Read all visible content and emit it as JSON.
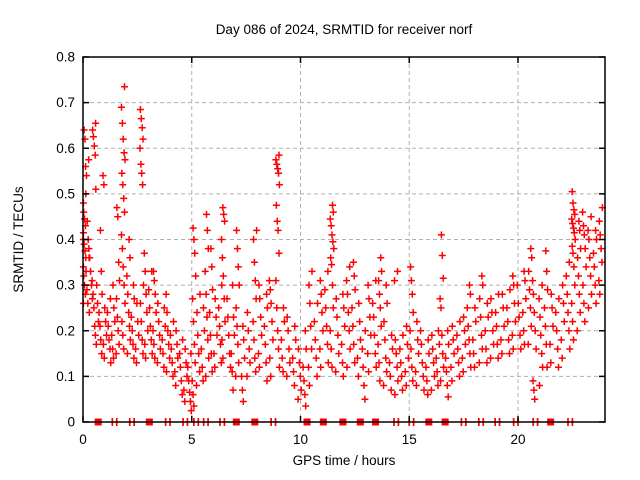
{
  "title": "Day 086 of 2024, SRMTID for receiver norf",
  "axes": {
    "xlabel": "GPS time / hours",
    "ylabel": "SRMTID / TECUs",
    "xticks": [
      {
        "v": 0,
        "label": "0"
      },
      {
        "v": 5,
        "label": "5"
      },
      {
        "v": 10,
        "label": "10"
      },
      {
        "v": 15,
        "label": "15"
      },
      {
        "v": 20,
        "label": "20"
      }
    ],
    "yticks": [
      {
        "v": 0,
        "label": "0"
      },
      {
        "v": 0.1,
        "label": "0.1"
      },
      {
        "v": 0.2,
        "label": "0.2"
      },
      {
        "v": 0.3,
        "label": "0.3"
      },
      {
        "v": 0.4,
        "label": "0.4"
      },
      {
        "v": 0.5,
        "label": "0.5"
      },
      {
        "v": 0.6,
        "label": "0.6"
      },
      {
        "v": 0.7,
        "label": "0.7"
      },
      {
        "v": 0.8,
        "label": "0.8"
      }
    ]
  },
  "colors": {
    "marker": "#ff0000",
    "grid": "#b0b0b0",
    "border": "#000000",
    "background": "#ffffff"
  },
  "chart_data": {
    "type": "scatter",
    "title": "Day 086 of 2024, SRMTID for receiver norf",
    "xlabel": "GPS time / hours",
    "ylabel": "SRMTID / TECUs",
    "xlim": [
      0,
      24
    ],
    "ylim": [
      0,
      0.8
    ],
    "grid": "dashed, at x=5,10,15,20 and y=0.1..0.7",
    "legend": "none",
    "marker": "plus",
    "marker_color": "#ff0000",
    "columns_note": "each entry = [gps_hour, [SRMTID values observed near that epoch]]",
    "columns": [
      [
        0.05,
        [
          0.26,
          0.28,
          0.3,
          0.32,
          0.34,
          0.36,
          0.375,
          0.39,
          0.4,
          0.415,
          0.43,
          0.445,
          0.46,
          0.48,
          0.5,
          0.62,
          0.64
        ]
      ],
      [
        0.2,
        [
          0.26,
          0.29,
          0.33,
          0.36,
          0.4,
          0.44,
          0.54,
          0.56,
          0.575
        ]
      ],
      [
        0.35,
        [
          0.24,
          0.27,
          0.3,
          0.33,
          0.36,
          0.38
        ]
      ],
      [
        0.5,
        [
          0.21,
          0.25,
          0.28,
          0.31,
          0.585,
          0.605,
          0.625,
          0.64,
          0.655
        ]
      ],
      [
        0.65,
        [
          0.17,
          0.19,
          0.22,
          0.26,
          0.3,
          0.51
        ]
      ],
      [
        0.8,
        [
          0.15,
          0.18,
          0.21,
          0.24,
          0.28,
          0.33,
          0.42
        ]
      ],
      [
        1.0,
        [
          0.14,
          0.17,
          0.19,
          0.22,
          0.25,
          0.52,
          0.54
        ]
      ],
      [
        1.2,
        [
          0.13,
          0.16,
          0.18,
          0.21,
          0.24,
          0.27
        ]
      ],
      [
        1.4,
        [
          0.14,
          0.16,
          0.19,
          0.22,
          0.25,
          0.3
        ]
      ],
      [
        1.6,
        [
          0.15,
          0.17,
          0.2,
          0.23,
          0.27,
          0.31,
          0.35,
          0.45,
          0.47
        ]
      ],
      [
        1.85,
        [
          0.16,
          0.19,
          0.22,
          0.26,
          0.3,
          0.34,
          0.38,
          0.41,
          0.46,
          0.49,
          0.52,
          0.545,
          0.575,
          0.59,
          0.62,
          0.655,
          0.69,
          0.735
        ]
      ],
      [
        2.1,
        [
          0.15,
          0.18,
          0.21,
          0.24,
          0.28,
          0.32,
          0.36,
          0.4
        ]
      ],
      [
        2.3,
        [
          0.14,
          0.17,
          0.2,
          0.23,
          0.27,
          0.3
        ]
      ],
      [
        2.5,
        [
          0.13,
          0.16,
          0.19,
          0.22,
          0.26
        ]
      ],
      [
        2.7,
        [
          0.15,
          0.18,
          0.22,
          0.26,
          0.3,
          0.52,
          0.545,
          0.565,
          0.6,
          0.62,
          0.645,
          0.665,
          0.685
        ]
      ],
      [
        2.9,
        [
          0.14,
          0.17,
          0.2,
          0.24,
          0.28,
          0.33,
          0.37
        ]
      ],
      [
        3.1,
        [
          0.15,
          0.18,
          0.21,
          0.25,
          0.29,
          0.33
        ]
      ],
      [
        3.3,
        [
          0.14,
          0.17,
          0.2,
          0.24,
          0.28,
          0.31,
          0.33
        ]
      ],
      [
        3.5,
        [
          0.13,
          0.16,
          0.19,
          0.22,
          0.26
        ]
      ],
      [
        3.7,
        [
          0.12,
          0.15,
          0.18,
          0.21,
          0.25
        ]
      ],
      [
        3.9,
        [
          0.11,
          0.14,
          0.17,
          0.2,
          0.24,
          0.28
        ]
      ],
      [
        4.1,
        [
          0.1,
          0.13,
          0.16,
          0.19,
          0.22
        ]
      ],
      [
        4.3,
        [
          0.08,
          0.11,
          0.14,
          0.17,
          0.2
        ]
      ],
      [
        4.5,
        [
          0.06,
          0.09,
          0.12,
          0.15,
          0.18
        ]
      ],
      [
        4.7,
        [
          0.045,
          0.07,
          0.1,
          0.13,
          0.16
        ]
      ],
      [
        4.9,
        [
          0.025,
          0.045,
          0.065,
          0.09,
          0.12,
          0.15
        ]
      ],
      [
        5.1,
        [
          0.035,
          0.06,
          0.09,
          0.13,
          0.17,
          0.22,
          0.27,
          0.32,
          0.37,
          0.4,
          0.425
        ]
      ],
      [
        5.3,
        [
          0.08,
          0.11,
          0.15,
          0.19,
          0.24,
          0.28
        ]
      ],
      [
        5.5,
        [
          0.09,
          0.12,
          0.16,
          0.2,
          0.25
        ]
      ],
      [
        5.7,
        [
          0.1,
          0.14,
          0.18,
          0.23,
          0.28,
          0.33,
          0.38,
          0.42,
          0.455
        ]
      ],
      [
        5.9,
        [
          0.11,
          0.15,
          0.19,
          0.24,
          0.29,
          0.34,
          0.38
        ]
      ],
      [
        6.1,
        [
          0.12,
          0.15,
          0.19,
          0.23,
          0.27
        ]
      ],
      [
        6.3,
        [
          0.13,
          0.17,
          0.21,
          0.25,
          0.3
        ]
      ],
      [
        6.45,
        [
          0.14,
          0.18,
          0.22,
          0.27,
          0.32,
          0.36,
          0.4,
          0.44,
          0.455,
          0.47
        ]
      ],
      [
        6.7,
        [
          0.12,
          0.15,
          0.19,
          0.23,
          0.27
        ]
      ],
      [
        6.9,
        [
          0.07,
          0.11,
          0.15,
          0.19,
          0.23,
          0.3
        ]
      ],
      [
        7.1,
        [
          0.1,
          0.13,
          0.17,
          0.21,
          0.25,
          0.3,
          0.34,
          0.38,
          0.42
        ]
      ],
      [
        7.35,
        [
          0.045,
          0.07,
          0.1,
          0.14,
          0.18,
          0.21
        ]
      ],
      [
        7.6,
        [
          0.1,
          0.13,
          0.16,
          0.2,
          0.24
        ]
      ],
      [
        7.9,
        [
          0.11,
          0.14,
          0.18,
          0.22,
          0.27,
          0.31,
          0.35,
          0.4,
          0.42
        ]
      ],
      [
        8.15,
        [
          0.12,
          0.15,
          0.19,
          0.23,
          0.27,
          0.3
        ]
      ],
      [
        8.4,
        [
          0.09,
          0.13,
          0.17,
          0.21,
          0.25,
          0.28
        ]
      ],
      [
        8.65,
        [
          0.1,
          0.14,
          0.18,
          0.22,
          0.26,
          0.29,
          0.31
        ]
      ],
      [
        8.95,
        [
          0.12,
          0.16,
          0.2,
          0.25,
          0.31,
          0.37,
          0.42,
          0.44,
          0.475,
          0.52,
          0.545,
          0.555,
          0.565,
          0.575,
          0.585
        ]
      ],
      [
        9.2,
        [
          0.11,
          0.14,
          0.18,
          0.22,
          0.25
        ]
      ],
      [
        9.45,
        [
          0.1,
          0.13,
          0.16,
          0.2,
          0.23
        ]
      ],
      [
        9.7,
        [
          0.08,
          0.11,
          0.14,
          0.18,
          0.21
        ]
      ],
      [
        9.95,
        [
          0.05,
          0.07,
          0.1,
          0.13,
          0.16
        ]
      ],
      [
        10.2,
        [
          0.035,
          0.06,
          0.09,
          0.12,
          0.16,
          0.2
        ]
      ],
      [
        10.45,
        [
          0.08,
          0.12,
          0.16,
          0.21,
          0.26,
          0.3,
          0.33
        ]
      ],
      [
        10.7,
        [
          0.1,
          0.14,
          0.18,
          0.22,
          0.26
        ]
      ],
      [
        10.95,
        [
          0.12,
          0.16,
          0.2,
          0.24,
          0.28,
          0.31
        ]
      ],
      [
        11.2,
        [
          0.13,
          0.17,
          0.21,
          0.25,
          0.29,
          0.33
        ]
      ],
      [
        11.45,
        [
          0.12,
          0.16,
          0.2,
          0.25,
          0.3,
          0.345,
          0.36,
          0.38,
          0.395,
          0.41,
          0.43,
          0.445,
          0.46,
          0.475
        ]
      ],
      [
        11.7,
        [
          0.11,
          0.15,
          0.19,
          0.23,
          0.27
        ]
      ],
      [
        11.95,
        [
          0.1,
          0.13,
          0.17,
          0.21,
          0.25,
          0.28
        ]
      ],
      [
        12.2,
        [
          0.12,
          0.16,
          0.2,
          0.24,
          0.28,
          0.31,
          0.34
        ]
      ],
      [
        12.45,
        [
          0.13,
          0.17,
          0.21,
          0.25,
          0.29,
          0.32,
          0.35
        ]
      ],
      [
        12.7,
        [
          0.1,
          0.14,
          0.18,
          0.22,
          0.26
        ]
      ],
      [
        12.9,
        [
          0.05,
          0.08,
          0.12,
          0.16,
          0.2
        ]
      ],
      [
        13.15,
        [
          0.11,
          0.15,
          0.19,
          0.23,
          0.27,
          0.3
        ]
      ],
      [
        13.4,
        [
          0.12,
          0.15,
          0.19,
          0.23,
          0.26,
          0.31
        ]
      ],
      [
        13.65,
        [
          0.09,
          0.13,
          0.17,
          0.21,
          0.25,
          0.28,
          0.31,
          0.33,
          0.36
        ]
      ],
      [
        13.9,
        [
          0.08,
          0.11,
          0.14,
          0.18,
          0.22,
          0.26,
          0.3
        ]
      ],
      [
        14.15,
        [
          0.07,
          0.1,
          0.13,
          0.16,
          0.19
        ]
      ],
      [
        14.4,
        [
          0.06,
          0.09,
          0.12,
          0.15,
          0.18,
          0.31,
          0.33
        ]
      ],
      [
        14.65,
        [
          0.07,
          0.1,
          0.13,
          0.16,
          0.19
        ]
      ],
      [
        14.9,
        [
          0.08,
          0.11,
          0.14,
          0.17,
          0.21
        ]
      ],
      [
        15.1,
        [
          0.09,
          0.12,
          0.16,
          0.2,
          0.24,
          0.28,
          0.31,
          0.34
        ]
      ],
      [
        15.35,
        [
          0.08,
          0.11,
          0.15,
          0.18,
          0.22
        ]
      ],
      [
        15.6,
        [
          0.07,
          0.1,
          0.13,
          0.17,
          0.2
        ]
      ],
      [
        15.85,
        [
          0.06,
          0.09,
          0.12,
          0.15,
          0.18
        ]
      ],
      [
        16.1,
        [
          0.07,
          0.1,
          0.13,
          0.16,
          0.19
        ]
      ],
      [
        16.3,
        [
          0.08,
          0.11,
          0.14,
          0.17,
          0.2
        ]
      ],
      [
        16.5,
        [
          0.09,
          0.12,
          0.15,
          0.19,
          0.25,
          0.27,
          0.315,
          0.365,
          0.41
        ]
      ],
      [
        16.75,
        [
          0.055,
          0.08,
          0.11,
          0.14,
          0.17,
          0.2
        ]
      ],
      [
        17.0,
        [
          0.09,
          0.12,
          0.15,
          0.18,
          0.21
        ]
      ],
      [
        17.25,
        [
          0.1,
          0.13,
          0.16,
          0.19,
          0.22
        ]
      ],
      [
        17.5,
        [
          0.11,
          0.14,
          0.17,
          0.2,
          0.23
        ]
      ],
      [
        17.75,
        [
          0.12,
          0.15,
          0.18,
          0.21,
          0.25,
          0.28,
          0.3
        ]
      ],
      [
        18.0,
        [
          0.12,
          0.15,
          0.18,
          0.22,
          0.25
        ]
      ],
      [
        18.3,
        [
          0.13,
          0.16,
          0.19,
          0.23,
          0.27,
          0.3,
          0.32
        ]
      ],
      [
        18.55,
        [
          0.13,
          0.16,
          0.2,
          0.23,
          0.26
        ]
      ],
      [
        18.8,
        [
          0.14,
          0.17,
          0.2,
          0.24,
          0.27
        ]
      ],
      [
        19.05,
        [
          0.14,
          0.17,
          0.21,
          0.24,
          0.28
        ]
      ],
      [
        19.3,
        [
          0.15,
          0.18,
          0.21,
          0.25,
          0.28
        ]
      ],
      [
        19.55,
        [
          0.15,
          0.18,
          0.22,
          0.25,
          0.29
        ]
      ],
      [
        19.8,
        [
          0.16,
          0.19,
          0.22,
          0.26,
          0.3,
          0.32
        ]
      ],
      [
        20.05,
        [
          0.16,
          0.19,
          0.23,
          0.26,
          0.3
        ]
      ],
      [
        20.3,
        [
          0.17,
          0.2,
          0.24,
          0.27,
          0.31,
          0.33
        ]
      ],
      [
        20.55,
        [
          0.17,
          0.21,
          0.25,
          0.29,
          0.33,
          0.36,
          0.38
        ]
      ],
      [
        20.75,
        [
          0.05,
          0.07,
          0.09,
          0.16,
          0.2,
          0.24,
          0.28,
          0.31
        ]
      ],
      [
        21.05,
        [
          0.08,
          0.12,
          0.15,
          0.19,
          0.23,
          0.27,
          0.3
        ]
      ],
      [
        21.3,
        [
          0.12,
          0.17,
          0.21,
          0.25,
          0.29,
          0.33,
          0.375
        ]
      ],
      [
        21.55,
        [
          0.13,
          0.17,
          0.21,
          0.25,
          0.28
        ]
      ],
      [
        21.8,
        [
          0.12,
          0.16,
          0.2,
          0.24,
          0.27
        ]
      ],
      [
        22.05,
        [
          0.14,
          0.18,
          0.22,
          0.26,
          0.3
        ]
      ],
      [
        22.3,
        [
          0.16,
          0.2,
          0.24,
          0.28,
          0.32,
          0.35
        ]
      ],
      [
        22.55,
        [
          0.18,
          0.22,
          0.26,
          0.3,
          0.34,
          0.37,
          0.385,
          0.4,
          0.415,
          0.425,
          0.435,
          0.445,
          0.455,
          0.465,
          0.48,
          0.505
        ]
      ],
      [
        22.8,
        [
          0.2,
          0.24,
          0.28,
          0.32,
          0.36,
          0.38,
          0.42,
          0.44
        ]
      ],
      [
        23.05,
        [
          0.22,
          0.26,
          0.3,
          0.34,
          0.38,
          0.41,
          0.43,
          0.46
        ]
      ],
      [
        23.3,
        [
          0.25,
          0.28,
          0.32,
          0.36,
          0.4,
          0.42,
          0.45
        ]
      ],
      [
        23.55,
        [
          0.26,
          0.3,
          0.34,
          0.37,
          0.4,
          0.42
        ]
      ],
      [
        23.8,
        [
          0.28,
          0.31,
          0.35,
          0.38,
          0.41,
          0.44,
          0.47
        ]
      ]
    ],
    "baseline_markers": {
      "note": "red markers drawn on the x-axis at y=0",
      "filled_square_x": [
        0.7,
        3.05,
        7.05,
        7.9,
        10.3,
        11.05,
        11.95,
        12.75,
        13.45,
        15.9,
        16.65,
        21.5
      ],
      "double_tick_x": [
        1.45,
        2.25,
        3.9,
        4.7,
        5.2,
        5.65,
        6.4,
        8.75,
        14.4,
        15.1,
        17.5,
        18.3,
        19.05,
        19.9,
        20.8,
        22.4
      ]
    }
  }
}
